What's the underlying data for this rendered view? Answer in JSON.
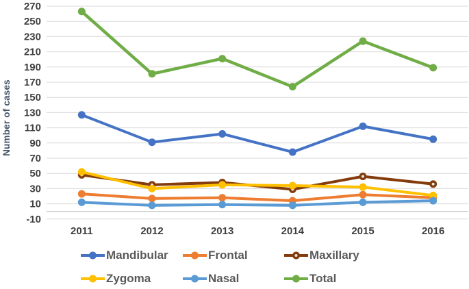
{
  "figure": {
    "background": "#ffffff",
    "gridline_color": "#D9D9D9",
    "axis_line_color": "#C0C0C0",
    "tick_label_color": "#3F3F3F",
    "axis_title_color": "#44546A",
    "legend_text_color": "#595959"
  },
  "chart_data": {
    "type": "line",
    "title": "",
    "xlabel": "",
    "ylabel": "Number of cases",
    "ylim": [
      -10,
      270
    ],
    "y_tick_step": 20,
    "y_ticks": [
      270,
      250,
      230,
      210,
      190,
      170,
      150,
      130,
      110,
      90,
      70,
      50,
      30,
      10,
      -10
    ],
    "categories": [
      "2011",
      "2012",
      "2013",
      "2014",
      "2015",
      "2016"
    ],
    "series": [
      {
        "name": "Mandibular",
        "color": "#4472C4",
        "marker": "solid",
        "values": [
          127,
          91,
          102,
          78,
          112,
          95
        ]
      },
      {
        "name": "Frontal",
        "color": "#ED7D31",
        "marker": "solid",
        "values": [
          23,
          17,
          18,
          14,
          22,
          18
        ]
      },
      {
        "name": "Maxillary",
        "color": "#843C0C",
        "marker": "open",
        "values": [
          48,
          35,
          38,
          29,
          46,
          36
        ]
      },
      {
        "name": "Zygoma",
        "color": "#FFC000",
        "marker": "solid",
        "values": [
          52,
          30,
          35,
          34,
          32,
          21
        ]
      },
      {
        "name": "Nasal",
        "color": "#5B9BD5",
        "marker": "solid",
        "values": [
          12,
          8,
          9,
          8,
          12,
          14
        ]
      },
      {
        "name": "Total",
        "color": "#70AD47",
        "marker": "solid",
        "values": [
          263,
          181,
          201,
          164,
          224,
          189
        ]
      }
    ],
    "grid": true,
    "legend_position": "bottom",
    "legend_rows": [
      [
        "Mandibular",
        "Frontal",
        "Maxillary"
      ],
      [
        "Zygoma",
        "Nasal",
        "Total"
      ]
    ]
  }
}
